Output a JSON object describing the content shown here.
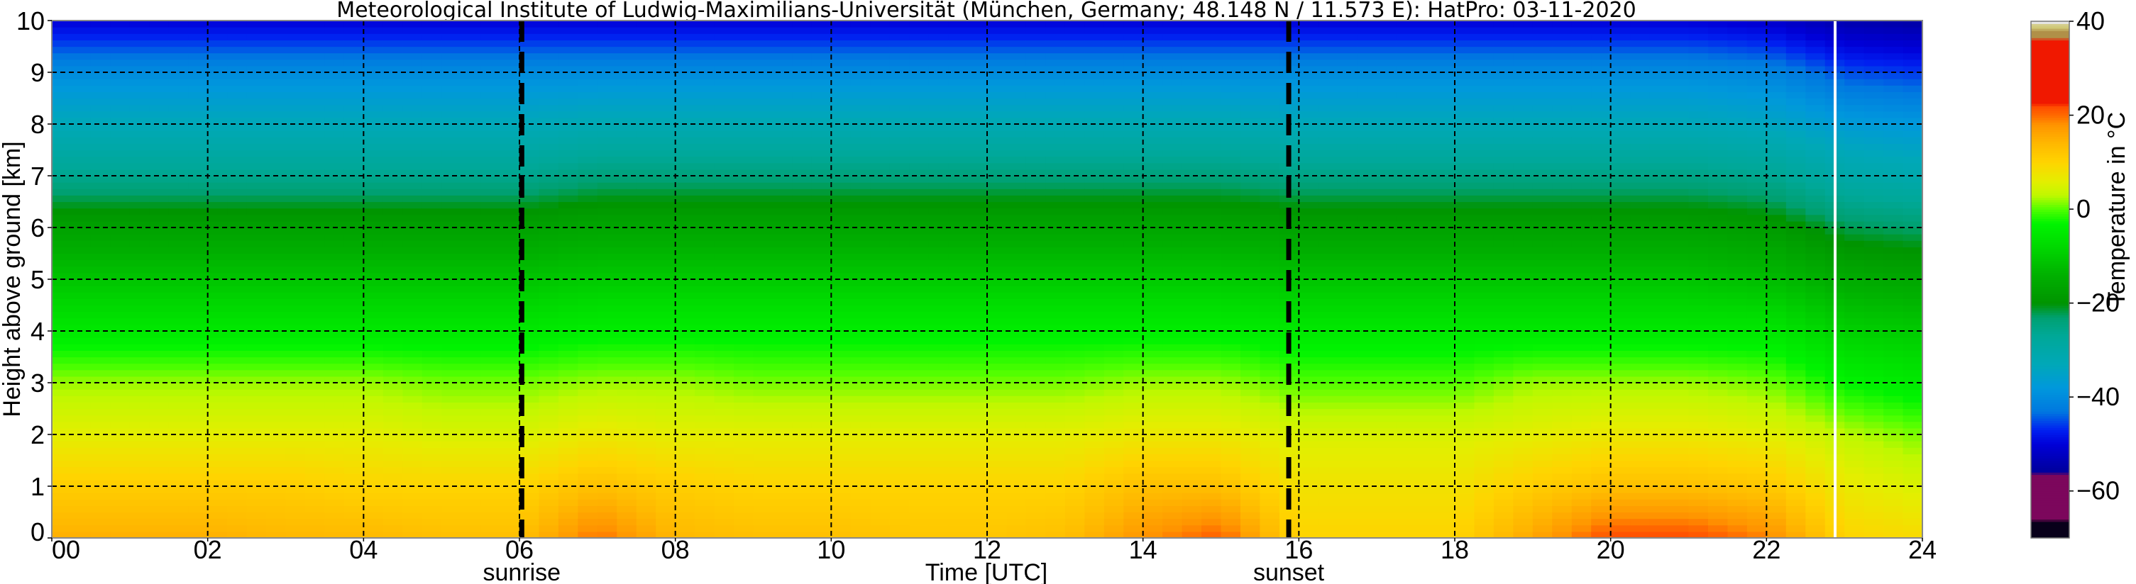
{
  "chart_data": {
    "type": "heatmap",
    "title": "Meteorological Institute of Ludwig-Maximilians-Universität (München, Germany; 48.148 N / 11.573 E):    HatPro: 03-11-2020",
    "xlabel": "Time [UTC]",
    "ylabel": "Height above ground [km]",
    "xlim": [
      0,
      24
    ],
    "ylim": [
      0,
      10
    ],
    "xticks": [
      "00",
      "02",
      "04",
      "06",
      "08",
      "10",
      "12",
      "14",
      "16",
      "18",
      "20",
      "22",
      "24"
    ],
    "xtick_values": [
      0,
      2,
      4,
      6,
      8,
      10,
      12,
      14,
      16,
      18,
      20,
      22,
      24
    ],
    "yticks": [
      "0",
      "1",
      "2",
      "3",
      "4",
      "5",
      "6",
      "7",
      "8",
      "9",
      "10"
    ],
    "grid": true,
    "annotations": [
      {
        "label": "sunrise",
        "time": 6.03
      },
      {
        "label": "sunset",
        "time": 15.87
      }
    ],
    "data_gap_time": 22.88,
    "colorbar": {
      "label": "Temperature in °C",
      "range": [
        -70,
        40
      ],
      "ticks": [
        "40",
        "20",
        "0",
        "−20",
        "−40",
        "−60"
      ],
      "tick_values": [
        40,
        20,
        0,
        -20,
        -40,
        -60
      ],
      "placement": "right",
      "colormap": [
        {
          "v": -70,
          "c": "#08001a"
        },
        {
          "v": -66.5,
          "c": "#08001a"
        },
        {
          "v": -66,
          "c": "#7c075c"
        },
        {
          "v": -56.5,
          "c": "#7c075c"
        },
        {
          "v": -56,
          "c": "#00009a"
        },
        {
          "v": -50,
          "c": "#0000d8"
        },
        {
          "v": -47,
          "c": "#0020f0"
        },
        {
          "v": -43,
          "c": "#0078e0"
        },
        {
          "v": -38,
          "c": "#0098dc"
        },
        {
          "v": -33,
          "c": "#00a8b8"
        },
        {
          "v": -27,
          "c": "#00a898"
        },
        {
          "v": -23,
          "c": "#00a070"
        },
        {
          "v": -20,
          "c": "#009400"
        },
        {
          "v": -14,
          "c": "#00b000"
        },
        {
          "v": -8,
          "c": "#00d800"
        },
        {
          "v": -3,
          "c": "#00f400"
        },
        {
          "v": 0,
          "c": "#50ff00"
        },
        {
          "v": 3,
          "c": "#c0f800"
        },
        {
          "v": 6,
          "c": "#e4ee00"
        },
        {
          "v": 10,
          "c": "#ffd400"
        },
        {
          "v": 14,
          "c": "#ffb800"
        },
        {
          "v": 18,
          "c": "#ff9400"
        },
        {
          "v": 20,
          "c": "#ff6a00"
        },
        {
          "v": 22,
          "c": "#ff4a00"
        },
        {
          "v": 22.5,
          "c": "#f01800"
        },
        {
          "v": 36,
          "c": "#f01800"
        },
        {
          "v": 36.5,
          "c": "#b09048"
        },
        {
          "v": 38,
          "c": "#b09048"
        },
        {
          "v": 38.5,
          "c": "#cfc878"
        },
        {
          "v": 39.2,
          "c": "#cfc878"
        },
        {
          "v": 39.5,
          "c": "#e6e6e6"
        },
        {
          "v": 40,
          "c": "#e6e6e6"
        }
      ]
    },
    "times": [
      0,
      1,
      2,
      3,
      4,
      5,
      6,
      7,
      8,
      9,
      10,
      11,
      12,
      13,
      14,
      15,
      16,
      17,
      18,
      19,
      20,
      21,
      22,
      23,
      24
    ],
    "heights": [
      0,
      0.5,
      1,
      1.5,
      2,
      3,
      4,
      5,
      6,
      7,
      8,
      9,
      10
    ],
    "temperature": [
      [
        15,
        15,
        15,
        14,
        14,
        13,
        13,
        20,
        14,
        13,
        13,
        12,
        12,
        13,
        18,
        21,
        10,
        10,
        10,
        16,
        22,
        22,
        19,
        10,
        9
      ],
      [
        13,
        13,
        13,
        12.5,
        12,
        11.5,
        11.5,
        16.5,
        12.5,
        11.5,
        11.5,
        11,
        11,
        11.5,
        15.5,
        17,
        9,
        9,
        9,
        13.5,
        17.5,
        17.5,
        15.5,
        8.5,
        7
      ],
      [
        11,
        11,
        11,
        11,
        10,
        10,
        10,
        13,
        11,
        10,
        10,
        10,
        10,
        10,
        13,
        13,
        8,
        8,
        8,
        11,
        13,
        13,
        12,
        7,
        5
      ],
      [
        8.5,
        8.5,
        8.5,
        8.5,
        8,
        7.5,
        7.5,
        10,
        8.5,
        8,
        8,
        8,
        8,
        8,
        10,
        10,
        6.5,
        6.5,
        6.5,
        8.5,
        10,
        10,
        9,
        5,
        3
      ],
      [
        6,
        6,
        6,
        6,
        6,
        5,
        5,
        7,
        6,
        6,
        6,
        6,
        6,
        6,
        7,
        7,
        5,
        5,
        5,
        6,
        7,
        7,
        6,
        3,
        1
      ],
      [
        2,
        2,
        2,
        2,
        2,
        1,
        1,
        2,
        2,
        1,
        1,
        1,
        1,
        1,
        2,
        2,
        0,
        0,
        0,
        2,
        2,
        2,
        1,
        -3,
        -5
      ],
      [
        -5,
        -5,
        -5,
        -5,
        -5,
        -5,
        -5,
        -4,
        -4,
        -4,
        -4,
        -4,
        -4,
        -4,
        -4,
        -4,
        -5,
        -5,
        -5,
        -5,
        -5,
        -5,
        -5,
        -9,
        -10
      ],
      [
        -11,
        -11,
        -11,
        -11,
        -11,
        -11,
        -11,
        -10,
        -10,
        -10,
        -10,
        -10,
        -10,
        -10,
        -10,
        -10,
        -11,
        -11,
        -11,
        -11,
        -11,
        -11,
        -12,
        -15,
        -16
      ],
      [
        -17,
        -17,
        -17,
        -17,
        -17,
        -17,
        -17,
        -16,
        -16,
        -16,
        -16,
        -16,
        -16,
        -16,
        -16,
        -16,
        -17,
        -17,
        -17,
        -17,
        -17,
        -17,
        -18,
        -22,
        -23
      ],
      [
        -26,
        -26,
        -26,
        -26,
        -26,
        -26,
        -26,
        -24,
        -24,
        -24,
        -24,
        -24,
        -24,
        -24,
        -24,
        -24,
        -25,
        -25,
        -25,
        -25,
        -25,
        -25,
        -26,
        -30,
        -31
      ],
      [
        -33,
        -33,
        -33,
        -33,
        -33,
        -33,
        -33,
        -32,
        -32,
        -32,
        -32,
        -32,
        -32,
        -32,
        -32,
        -32,
        -33,
        -33,
        -33,
        -33,
        -33,
        -33,
        -34,
        -37,
        -38
      ],
      [
        -40,
        -40,
        -40,
        -40,
        -40,
        -40,
        -40,
        -40,
        -40,
        -40,
        -40,
        -40,
        -40,
        -40,
        -40,
        -40,
        -40,
        -40,
        -40,
        -40,
        -40,
        -40,
        -41,
        -45,
        -46
      ],
      [
        -50,
        -50,
        -50,
        -50,
        -50,
        -50,
        -50,
        -50,
        -50,
        -50,
        -50,
        -50,
        -50,
        -50,
        -50,
        -50,
        -50,
        -50,
        -50,
        -50,
        -50,
        -50,
        -51,
        -54,
        -55
      ]
    ]
  }
}
